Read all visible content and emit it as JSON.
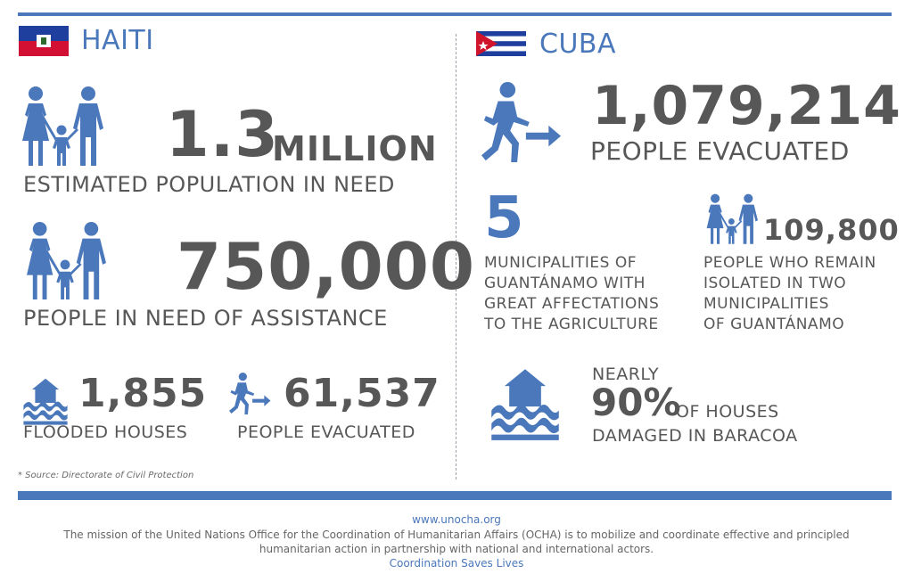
{
  "haiti": {
    "country_name": "HAITI",
    "population_in_need": {
      "value": "1.3",
      "unit": "MILLION",
      "label": "ESTIMATED POPULATION IN NEED"
    },
    "people_needing_assistance": {
      "value": "750,000",
      "label": "PEOPLE IN NEED OF ASSISTANCE"
    },
    "flooded_houses": {
      "value": "1,855",
      "label": "FLOODED HOUSES"
    },
    "people_evacuated": {
      "value": "61,537",
      "label": "PEOPLE EVACUATED"
    },
    "source_note": "* Source: Directorate of Civil Protection"
  },
  "cuba": {
    "country_name": "CUBA",
    "people_evacuated": {
      "value": "1,079,214",
      "label": "PEOPLE EVACUATED"
    },
    "municipalities": {
      "value": "5",
      "label_lines": [
        "MUNICIPALITIES OF",
        "GUANTÁNAMO WITH",
        "GREAT AFFECTATIONS",
        "TO THE AGRICULTURE"
      ]
    },
    "isolated_people": {
      "value": "109,800",
      "label_lines": [
        "PEOPLE WHO REMAIN",
        "ISOLATED IN TWO",
        "MUNICIPALITIES",
        "OF GUANTÁNAMO"
      ]
    },
    "houses_damaged": {
      "prefix": "NEARLY",
      "value": "90%",
      "suffix": "OF HOUSES",
      "label": "DAMAGED IN BARACOA"
    }
  },
  "footer": {
    "url": "www.unocha.org",
    "mission_line1": "The mission of the United Nations Office for the Coordination of Humanitarian Affairs (OCHA) is to mobilize and coordinate effective and principled",
    "mission_line2": "humanitarian action in partnership with national and international actors.",
    "tagline": "Coordination Saves Lives"
  },
  "colors": {
    "accent": "#4a78bb",
    "text": "#575757",
    "haiti_blue": "#1e3f9e",
    "haiti_red": "#d21034",
    "cuba_red": "#cf142b"
  }
}
